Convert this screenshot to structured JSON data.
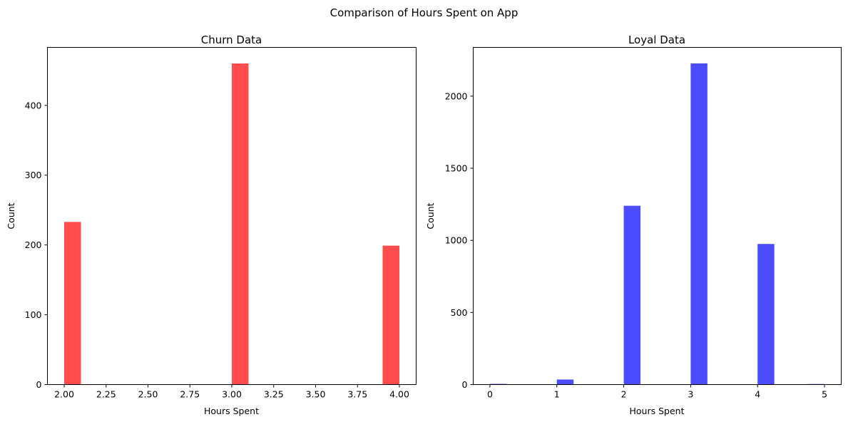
{
  "figure": {
    "suptitle": "Comparison of Hours Spent on App"
  },
  "chart_data": [
    {
      "type": "bar",
      "title": "Churn Data",
      "xlabel": "Hours Spent",
      "ylabel": "Count",
      "color": "#ff4c4c",
      "bin_width": 0.1,
      "x": [
        2.0,
        3.0,
        3.9
      ],
      "values": [
        233,
        460,
        199
      ],
      "xlim": [
        1.9,
        4.1
      ],
      "ylim": [
        0,
        483
      ],
      "xticks": [
        2.0,
        2.25,
        2.5,
        2.75,
        3.0,
        3.25,
        3.5,
        3.75,
        4.0
      ],
      "xtick_labels": [
        "2.00",
        "2.25",
        "2.50",
        "2.75",
        "3.00",
        "3.25",
        "3.50",
        "3.75",
        "4.00"
      ],
      "yticks": [
        0,
        100,
        200,
        300,
        400
      ],
      "ytick_labels": [
        "0",
        "100",
        "200",
        "300",
        "400"
      ],
      "grid": false
    },
    {
      "type": "bar",
      "title": "Loyal Data",
      "xlabel": "Hours Spent",
      "ylabel": "Count",
      "color": "#4c4cff",
      "bin_width": 0.25,
      "x": [
        0.0,
        1.0,
        2.0,
        3.0,
        4.0,
        4.75
      ],
      "values": [
        5,
        35,
        1240,
        2227,
        975,
        4
      ],
      "xlim": [
        -0.25,
        5.25
      ],
      "ylim": [
        0,
        2338
      ],
      "xticks": [
        0,
        1,
        2,
        3,
        4,
        5
      ],
      "xtick_labels": [
        "0",
        "1",
        "2",
        "3",
        "4",
        "5"
      ],
      "yticks": [
        0,
        500,
        1000,
        1500,
        2000
      ],
      "ytick_labels": [
        "0",
        "500",
        "1000",
        "1500",
        "2000"
      ],
      "grid": false
    }
  ]
}
